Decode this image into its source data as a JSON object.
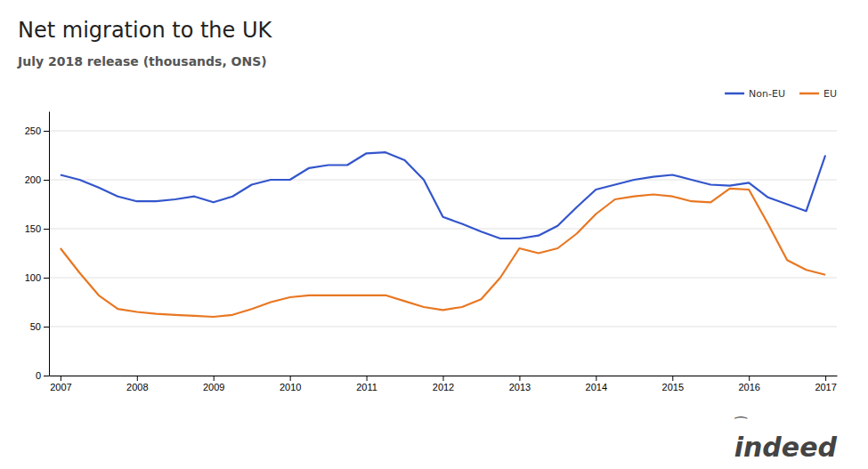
{
  "chart_data": {
    "type": "line",
    "title": "Net migration to the UK",
    "subtitle": "July 2018 release (thousands, ONS)",
    "x": [
      2007.0,
      2007.25,
      2007.5,
      2007.75,
      2008.0,
      2008.25,
      2008.5,
      2008.75,
      2009.0,
      2009.25,
      2009.5,
      2009.75,
      2010.0,
      2010.25,
      2010.5,
      2010.75,
      2011.0,
      2011.25,
      2011.5,
      2011.75,
      2012.0,
      2012.25,
      2012.5,
      2012.75,
      2013.0,
      2013.25,
      2013.5,
      2013.75,
      2014.0,
      2014.25,
      2014.5,
      2014.75,
      2015.0,
      2015.25,
      2015.5,
      2015.75,
      2016.0,
      2016.25,
      2016.5,
      2016.75,
      2017.0
    ],
    "series": [
      {
        "name": "Non-EU",
        "color": "#3355cc",
        "values": [
          205,
          200,
          192,
          183,
          178,
          178,
          180,
          183,
          177,
          183,
          195,
          200,
          200,
          212,
          215,
          215,
          227,
          228,
          220,
          200,
          162,
          155,
          147,
          140,
          140,
          143,
          153,
          172,
          190,
          195,
          200,
          203,
          205,
          200,
          195,
          194,
          197,
          182,
          175,
          168,
          225
        ]
      },
      {
        "name": "EU",
        "color": "#e87722",
        "values": [
          130,
          105,
          82,
          68,
          65,
          63,
          62,
          61,
          60,
          62,
          68,
          75,
          80,
          82,
          82,
          82,
          82,
          82,
          76,
          70,
          67,
          70,
          78,
          100,
          130,
          125,
          130,
          145,
          165,
          180,
          183,
          185,
          183,
          178,
          177,
          191,
          190,
          155,
          118,
          108,
          103
        ]
      }
    ],
    "xlim": [
      2006.85,
      2017.15
    ],
    "xticks": [
      2007,
      2008,
      2009,
      2010,
      2011,
      2012,
      2013,
      2014,
      2015,
      2016,
      2017
    ],
    "ylim": [
      0,
      270
    ],
    "yticks": [
      0,
      50,
      100,
      150,
      200,
      250
    ],
    "grid": true,
    "legend": "upper right",
    "annotations": [
      "indeed",
      "⁀"
    ]
  }
}
